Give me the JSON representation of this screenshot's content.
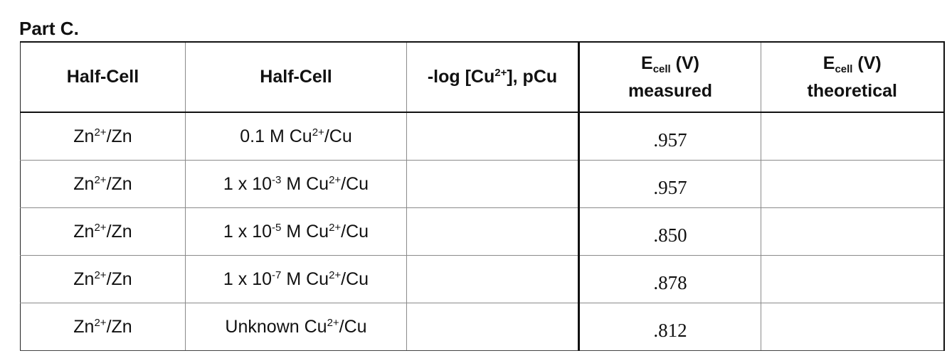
{
  "part_title": "Part C.",
  "table": {
    "headers": {
      "col1": "Half-Cell",
      "col2": "Half-Cell",
      "col3": {
        "prefix": "-log [Cu",
        "sup": "2+",
        "suffix": "], pCu"
      },
      "col4": {
        "main": "E",
        "sub": "cell",
        "unit": " (V)",
        "line2": "measured"
      },
      "col5": {
        "main": "E",
        "sub": "cell",
        "unit": " (V)",
        "line2": "theoretical"
      }
    },
    "rows": [
      {
        "half_cell_1": {
          "base": "Zn",
          "sup": "2+",
          "rest": "/Zn"
        },
        "half_cell_2": {
          "pre": "0.1 M Cu",
          "sup": "2+",
          "post": "/Cu"
        },
        "pcu": "",
        "measured": ".957",
        "theoretical": ""
      },
      {
        "half_cell_1": {
          "base": "Zn",
          "sup": "2+",
          "rest": "/Zn"
        },
        "half_cell_2": {
          "pre": "1 x 10",
          "exp": "-3",
          "mid": " M Cu",
          "sup": "2+",
          "post": "/Cu"
        },
        "pcu": "",
        "measured": ".957",
        "theoretical": ""
      },
      {
        "half_cell_1": {
          "base": "Zn",
          "sup": "2+",
          "rest": "/Zn"
        },
        "half_cell_2": {
          "pre": "1 x 10",
          "exp": "-5",
          "mid": " M Cu",
          "sup": "2+",
          "post": "/Cu"
        },
        "pcu": "",
        "measured": ".850",
        "theoretical": ""
      },
      {
        "half_cell_1": {
          "base": "Zn",
          "sup": "2+",
          "rest": "/Zn"
        },
        "half_cell_2": {
          "pre": "1 x 10",
          "exp": "-7",
          "mid": " M Cu",
          "sup": "2+",
          "post": "/Cu"
        },
        "pcu": "",
        "measured": ".878",
        "theoretical": ""
      },
      {
        "half_cell_1": {
          "base": "Zn",
          "sup": "2+",
          "rest": "/Zn"
        },
        "half_cell_2": {
          "pre": "Unknown Cu",
          "sup": "2+",
          "post": "/Cu"
        },
        "pcu": "",
        "measured": ".812",
        "theoretical": ""
      }
    ]
  }
}
